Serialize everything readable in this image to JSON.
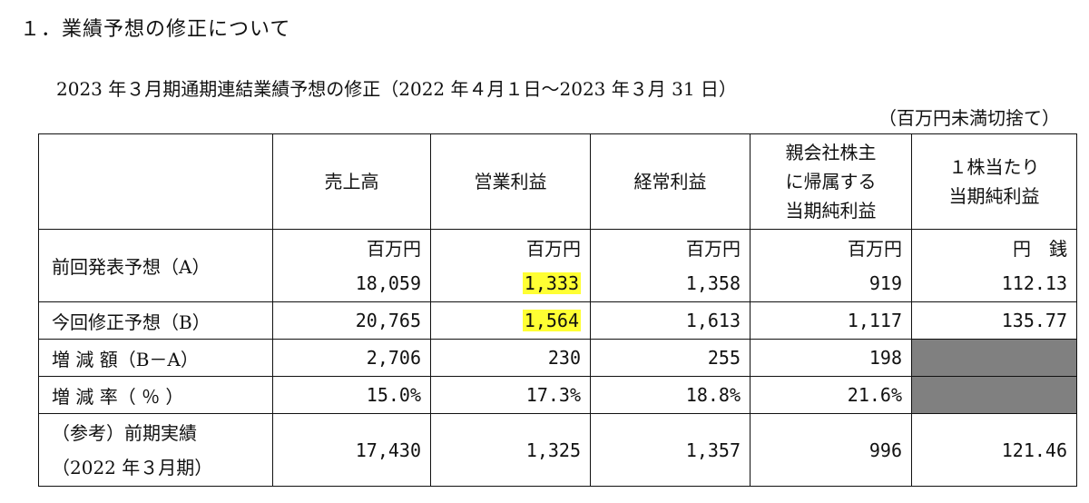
{
  "section_title": "１．業績予想の修正について",
  "sub_title": "2023 年３月期通期連結業績予想の修正（2022 年４月１日～2023 年３月 31 日）",
  "unit_note": "（百万円未満切捨て）",
  "table": {
    "headers": {
      "sales": "売上高",
      "operating_profit": "営業利益",
      "ordinary_profit": "経常利益",
      "net_profit_line1": "親会社株主",
      "net_profit_line2": "に帰属する",
      "net_profit_line3": "当期純利益",
      "eps_line1": "１株当たり",
      "eps_line2": "当期純利益"
    },
    "units": {
      "million_yen": "百万円",
      "yen_sen": "円　銭"
    },
    "rows": {
      "previous": {
        "label": "前回発表予想（A）",
        "sales": "18,059",
        "operating_profit": "1,333",
        "ordinary_profit": "1,358",
        "net_profit": "919",
        "eps": "112.13"
      },
      "revised": {
        "label": "今回修正予想（B）",
        "sales": "20,765",
        "operating_profit": "1,564",
        "ordinary_profit": "1,613",
        "net_profit": "1,117",
        "eps": "135.77"
      },
      "change_amount": {
        "label": "増 減 額（B－A）",
        "sales": "2,706",
        "operating_profit": "230",
        "ordinary_profit": "255",
        "net_profit": "198"
      },
      "change_rate": {
        "label": "増 減 率（ ％ ）",
        "sales": "15.0%",
        "operating_profit": "17.3%",
        "ordinary_profit": "18.8%",
        "net_profit": "21.6%"
      },
      "reference": {
        "label_line1": "（参考）前期実績",
        "label_line2": "（2022 年３月期）",
        "sales": "17,430",
        "operating_profit": "1,325",
        "ordinary_profit": "1,357",
        "net_profit": "996",
        "eps": "121.46"
      }
    }
  },
  "colors": {
    "highlight": "#ffff33",
    "blank_cell": "#808080"
  }
}
